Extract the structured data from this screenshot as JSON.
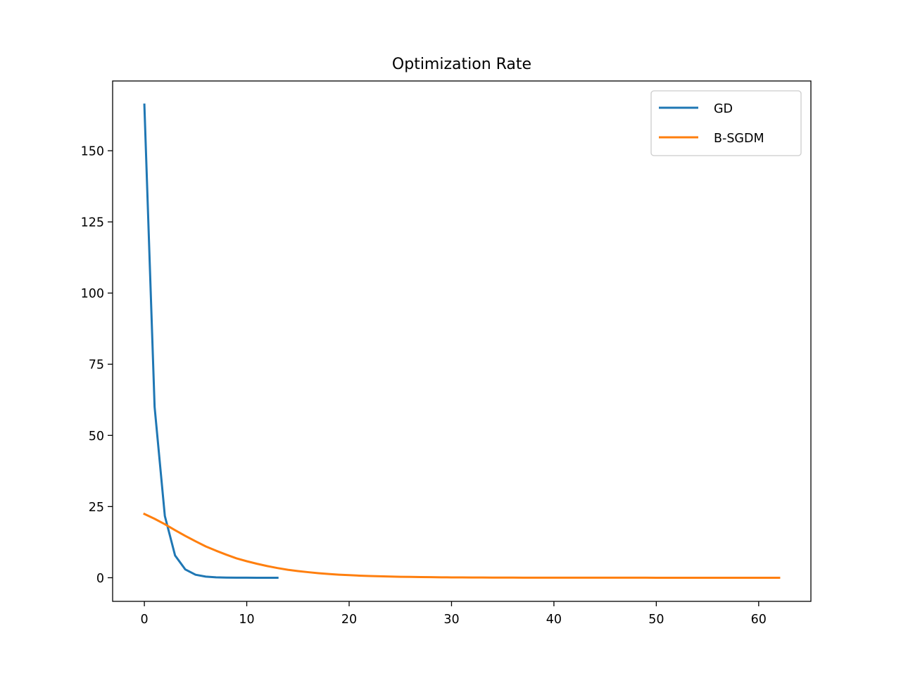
{
  "chart_data": {
    "type": "line",
    "title": "Optimization Rate",
    "xlabel": "",
    "ylabel": "",
    "xlim": [
      -3.1,
      65.1
    ],
    "ylim": [
      -8.3,
      174.5
    ],
    "xticks": [
      0,
      10,
      20,
      30,
      40,
      50,
      60
    ],
    "yticks": [
      0,
      25,
      50,
      75,
      100,
      125,
      150
    ],
    "grid": false,
    "legend_position": "top-right",
    "series": [
      {
        "name": "GD",
        "color": "#1f77b4",
        "x": [
          0,
          1,
          2,
          3,
          4,
          5,
          6,
          7,
          8,
          9,
          10,
          11,
          12,
          13
        ],
        "y": [
          166.2,
          60.0,
          21.7,
          7.8,
          2.9,
          1.05,
          0.38,
          0.14,
          0.05,
          0.02,
          0.01,
          0.0,
          0.0,
          0.0
        ]
      },
      {
        "name": "B-SGDM",
        "color": "#ff7f0e",
        "x": [
          0,
          1,
          2,
          3,
          4,
          5,
          6,
          7,
          8,
          9,
          10,
          11,
          12,
          13,
          14,
          15,
          16,
          17,
          18,
          19,
          20,
          21,
          22,
          23,
          24,
          25,
          26,
          27,
          28,
          29,
          30,
          31,
          32,
          33,
          34,
          35,
          36,
          37,
          38,
          39,
          40,
          41,
          42,
          43,
          44,
          45,
          46,
          47,
          48,
          49,
          50,
          51,
          52,
          53,
          54,
          55,
          56,
          57,
          58,
          59,
          60,
          61,
          62
        ],
        "y": [
          22.4,
          20.7,
          18.8,
          16.7,
          14.7,
          12.8,
          11.0,
          9.5,
          8.1,
          6.8,
          5.8,
          4.9,
          4.1,
          3.4,
          2.8,
          2.35,
          1.95,
          1.6,
          1.32,
          1.08,
          0.9,
          0.74,
          0.6,
          0.5,
          0.41,
          0.34,
          0.28,
          0.23,
          0.19,
          0.15,
          0.12,
          0.1,
          0.08,
          0.07,
          0.055,
          0.045,
          0.037,
          0.03,
          0.025,
          0.02,
          0.016,
          0.013,
          0.011,
          0.009,
          0.007,
          0.006,
          0.005,
          0.004,
          0.003,
          0.003,
          0.002,
          0.002,
          0.002,
          0.001,
          0.001,
          0.001,
          0.001,
          0.0,
          0.0,
          0.0,
          0.0,
          0.0,
          0.0
        ]
      }
    ]
  }
}
